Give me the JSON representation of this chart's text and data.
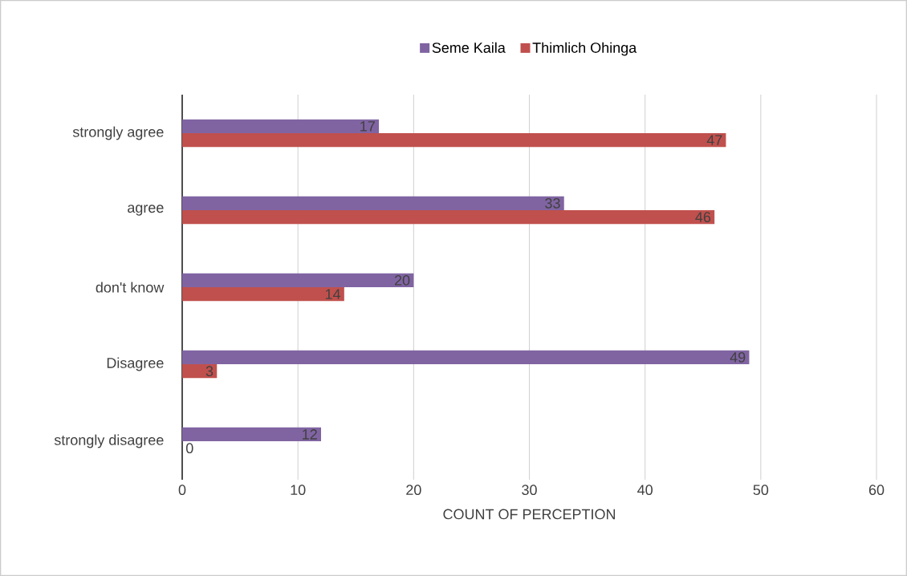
{
  "chart_data": {
    "type": "bar",
    "orientation": "horizontal",
    "xlabel": "COUNT OF PERCEPTION",
    "categories": [
      "strongly agree",
      "agree",
      "don't know",
      "Disagree",
      "strongly disagree"
    ],
    "series": [
      {
        "name": "Seme Kaila",
        "color": "#8064a2",
        "values": [
          17,
          33,
          20,
          49,
          12
        ]
      },
      {
        "name": "Thimlich Ohinga",
        "color": "#c0504d",
        "values": [
          47,
          46,
          14,
          3,
          0
        ]
      }
    ],
    "xlim": [
      0,
      60
    ],
    "xticks": [
      0,
      10,
      20,
      30,
      40,
      50,
      60
    ],
    "grid": "x",
    "legend": "top",
    "data_labels": true
  }
}
